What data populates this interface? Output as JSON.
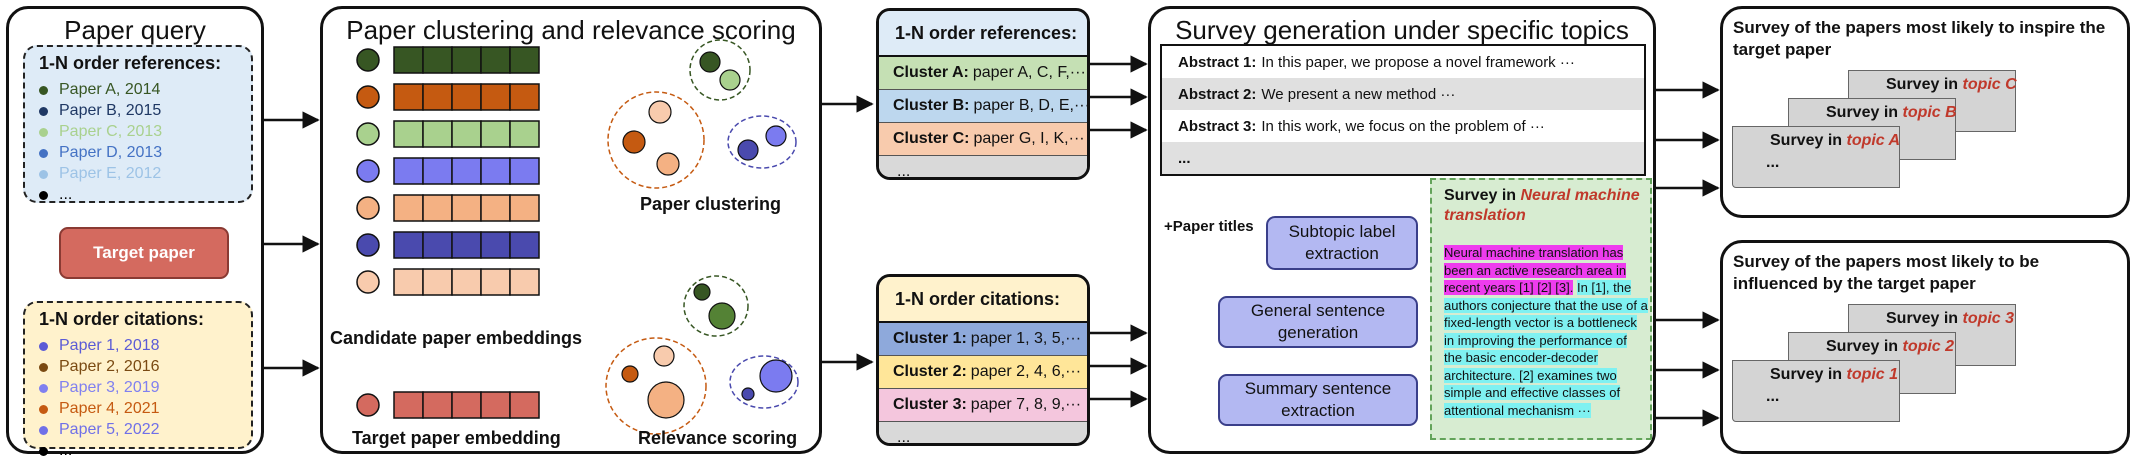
{
  "panel1": {
    "title": "Paper query",
    "refs": {
      "heading": "1-N order references:",
      "items": [
        {
          "text": "Paper A, 2014",
          "color": "#375623"
        },
        {
          "text": "Paper B, 2015",
          "color": "#1f3864"
        },
        {
          "text": "Paper C, 2013",
          "color": "#a9d18e"
        },
        {
          "text": "Paper D, 2013",
          "color": "#4472c4"
        },
        {
          "text": "Paper E, 2012",
          "color": "#9dc3e6"
        },
        {
          "text": "...",
          "color": "#000000"
        }
      ]
    },
    "target": "Target paper",
    "cites": {
      "heading": "1-N order citations:",
      "items": [
        {
          "text": "Paper 1, 2018",
          "color": "#5b5bd6"
        },
        {
          "text": "Paper 2, 2016",
          "color": "#7a4a12"
        },
        {
          "text": "Paper 3, 2019",
          "color": "#8080f0"
        },
        {
          "text": "Paper 4, 2021",
          "color": "#c55a11"
        },
        {
          "text": "Paper 5, 2022",
          "color": "#7070e8"
        },
        {
          "text": "...",
          "color": "#000000"
        }
      ]
    }
  },
  "panel2": {
    "title": "Paper clustering and relevance scoring",
    "candidate_label": "Candidate paper embeddings",
    "target_label": "Target paper embedding",
    "clustering_label": "Paper clustering",
    "relevance_label": "Relevance scoring",
    "rows": [
      {
        "dot": "#375623",
        "fill": "#375623"
      },
      {
        "dot": "#c55a11",
        "fill": "#c55a11"
      },
      {
        "dot": "#a9d18e",
        "fill": "#a9d18e"
      },
      {
        "dot": "#7b7bf0",
        "fill": "#7b7bf0"
      },
      {
        "dot": "#f4b183",
        "fill": "#f4b183"
      },
      {
        "dot": "#4a4aae",
        "fill": "#4a4aae"
      },
      {
        "dot": "#f8cbad",
        "fill": "#f8cbad"
      }
    ],
    "target_fill": "#d46a5f"
  },
  "refbox": {
    "heading": "1-N order references:",
    "rows": [
      {
        "name": "Cluster A:",
        "text": "paper A, C, F,···",
        "bg": "#c5e0b4"
      },
      {
        "name": "Cluster B:",
        "text": "paper B, D, E,···",
        "bg": "#bdd7ee"
      },
      {
        "name": "Cluster C:",
        "text": "paper G, I, K,···",
        "bg": "#f8cbad"
      },
      {
        "name": "",
        "text": "...",
        "bg": "#d9d9d9"
      }
    ]
  },
  "citebox": {
    "heading": "1-N order citations:",
    "rows": [
      {
        "name": "Cluster 1:",
        "text": "paper 1, 3, 5,···",
        "bg": "#8ea9db"
      },
      {
        "name": "Cluster 2:",
        "text": "paper 2, 4, 6,···",
        "bg": "#ffe699"
      },
      {
        "name": "Cluster 3:",
        "text": "paper 7, 8, 9,···",
        "bg": "#f4c6dd"
      },
      {
        "name": "",
        "text": "...",
        "bg": "#d9d9d9"
      }
    ]
  },
  "panel3": {
    "title": "Survey generation under specific topics",
    "abstracts": [
      {
        "name": "Abstract 1:",
        "text": "In this paper, we propose a novel framework ···",
        "bg": "#ffffff"
      },
      {
        "name": "Abstract 2:",
        "text": "We present a new method ···",
        "bg": "#e0e0e0"
      },
      {
        "name": "Abstract 3:",
        "text": "In this work, we focus on the problem of ···",
        "bg": "#ffffff"
      },
      {
        "name": "...",
        "text": "",
        "bg": "#e0e0e0"
      }
    ],
    "paper_titles": "+Paper titles",
    "proc1": "Subtopic label extraction",
    "proc2": "General sentence generation",
    "proc3": "Summary sentence extraction",
    "survey_title_prefix": "Survey in ",
    "survey_topic": "Neural machine translation",
    "mag_text": "Neural machine translation has been an active research area in recent years [1] [2] [3].",
    "cyan_text": "In [1], the authors conjecture that the use of a fixed-length vector is a bottleneck in improving the performance of the basic encoder-decoder architecture. [2] examines two simple and effective classes of attentional mechanism ···"
  },
  "out1": {
    "title": "Survey of the papers most likely to inspire the target paper",
    "docs": [
      {
        "prefix": "Survey in ",
        "topic": "topic C"
      },
      {
        "prefix": "Survey in ",
        "topic": "topic B"
      },
      {
        "prefix": "Survey in ",
        "topic": "topic A"
      }
    ],
    "ellipsis": "..."
  },
  "out2": {
    "title": "Survey of the papers most likely to be influenced by the target paper",
    "docs": [
      {
        "prefix": "Survey in ",
        "topic": "topic 3"
      },
      {
        "prefix": "Survey in ",
        "topic": "topic 2"
      },
      {
        "prefix": "Survey in ",
        "topic": "topic 1"
      }
    ],
    "ellipsis": "..."
  }
}
